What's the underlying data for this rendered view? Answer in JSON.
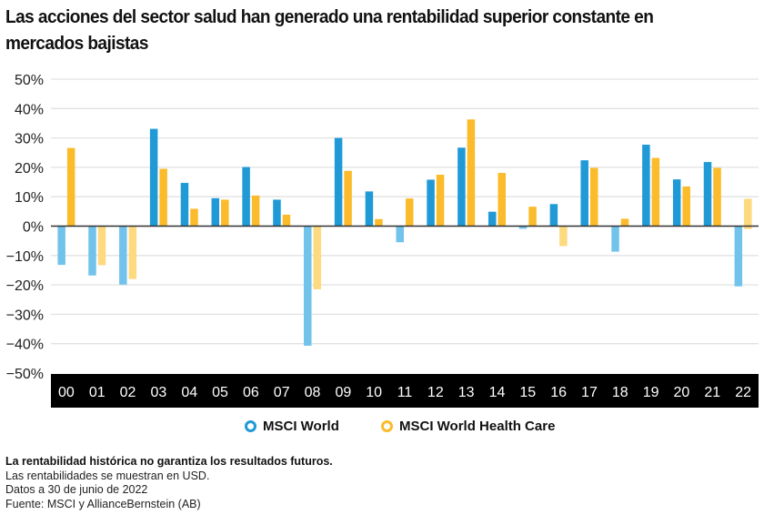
{
  "title": "Las acciones del sector salud han generado una rentabilidad superior constante en mercados bajistas",
  "legend": [
    {
      "name": "MSCI World",
      "color": "#1f9ad6"
    },
    {
      "name": "MSCI World Health Care",
      "color": "#fbbb2a"
    }
  ],
  "notes": {
    "disclaimer": "La rentabilidad histórica no garantiza los resultados futuros.",
    "currency": "Las rentabilidades se muestran en USD.",
    "date": "Datos a 30 de junio de 2022",
    "source": "Fuente:  MSCI y AllianceBernstein (AB)"
  },
  "colors": {
    "world_positive": "#1f9ad6",
    "world_negative": "#72c3ec",
    "hc_positive": "#fbbb2a",
    "hc_negative": "#fdd980",
    "axis_band": "#000000",
    "grid": "#e2e2e2",
    "zero_line": "#333333"
  },
  "chart_data": {
    "type": "bar",
    "title": "Las acciones del sector salud han generado una rentabilidad superior constante en mercados bajistas",
    "xlabel": "",
    "ylabel": "",
    "ylim": [
      -50,
      50
    ],
    "yticks": [
      50,
      40,
      30,
      20,
      10,
      0,
      -10,
      -20,
      -30,
      -40,
      -50
    ],
    "ytick_labels": [
      "50%",
      "40%",
      "30%",
      "20%",
      "10%",
      "0%",
      "−10%",
      "−20%",
      "−30%",
      "−40%",
      "−50%"
    ],
    "grid": true,
    "legend_position": "bottom",
    "categories": [
      "00",
      "01",
      "02",
      "03",
      "04",
      "05",
      "06",
      "07",
      "08",
      "09",
      "10",
      "11",
      "12",
      "13",
      "14",
      "15",
      "16",
      "17",
      "18",
      "19",
      "20",
      "21",
      "22"
    ],
    "series": [
      {
        "name": "MSCI World",
        "values": [
          -13.2,
          -16.8,
          -19.9,
          33.1,
          14.7,
          9.5,
          20.1,
          9.0,
          -40.7,
          30.0,
          11.8,
          -5.5,
          15.8,
          26.7,
          4.9,
          -0.9,
          7.5,
          22.4,
          -8.7,
          27.7,
          15.9,
          21.8,
          -20.5
        ]
      },
      {
        "name": "MSCI World Health Care",
        "values": [
          26.6,
          -13.3,
          -18.0,
          19.5,
          5.9,
          9.0,
          10.4,
          3.9,
          -21.5,
          18.8,
          2.4,
          9.4,
          17.5,
          36.3,
          18.1,
          6.6,
          -6.8,
          19.8,
          2.5,
          23.2,
          13.5,
          19.8,
          -1.0
        ],
        "bar_ranges": {
          "22": [
            -1.0,
            9.3
          ]
        }
      }
    ]
  }
}
